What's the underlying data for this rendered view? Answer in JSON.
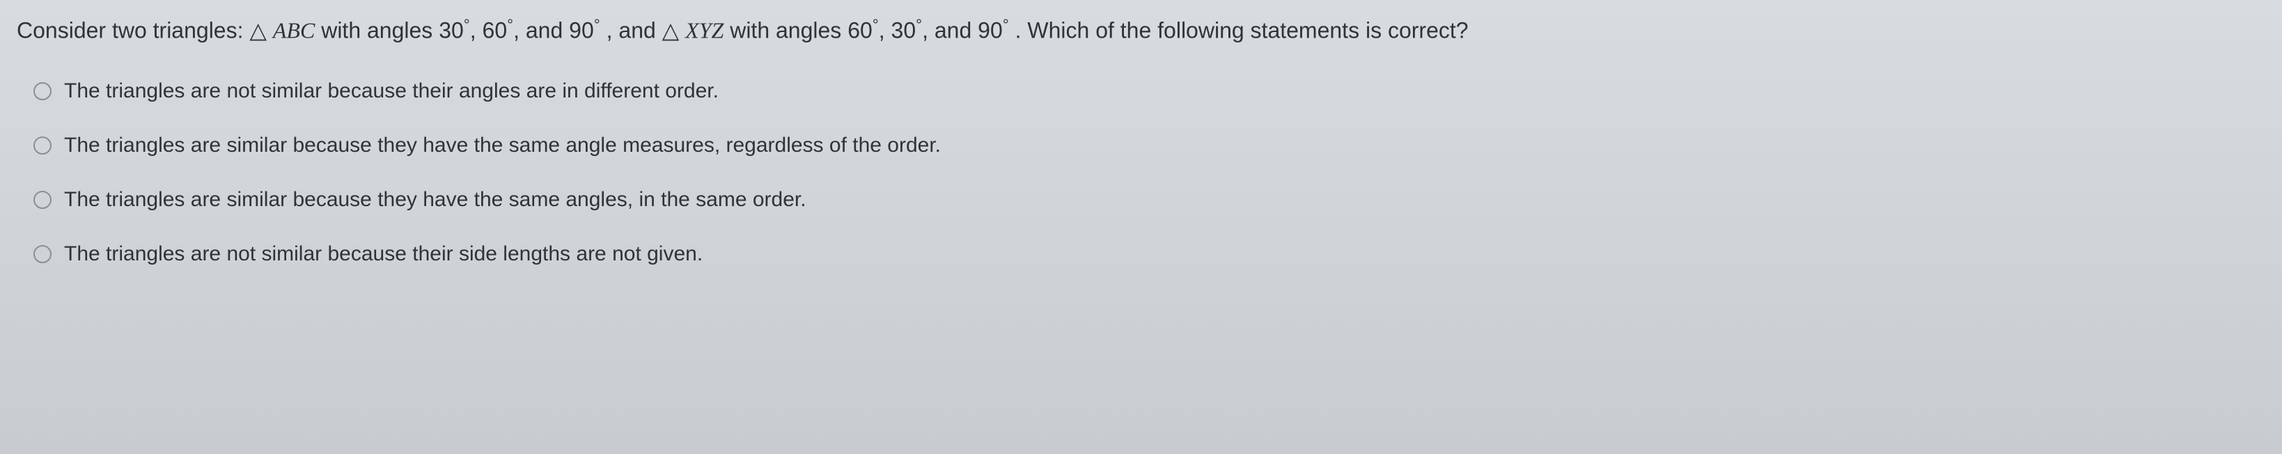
{
  "question": {
    "prefix": "Consider two triangles: ",
    "triangle1_symbol": "△",
    "triangle1_name": "ABC",
    "with_angles": " with angles ",
    "angle1": "30",
    "angle2": "60",
    "angle3": "90",
    "and_text": ", and ",
    "triangle2_symbol": "△",
    "triangle2_name": "XYZ",
    "angle4": "60",
    "angle5": "30",
    "angle6": "90",
    "suffix": ". Which of the following statements is correct?"
  },
  "options": [
    {
      "text": "The triangles are not similar because their angles are in different order."
    },
    {
      "text": "The triangles are similar because they have the same angle measures, regardless of the order."
    },
    {
      "text": "The triangles are similar because they have the same angles, in the same order."
    },
    {
      "text": "The triangles are not similar because their side lengths are not given."
    }
  ],
  "degree_symbol": "°"
}
